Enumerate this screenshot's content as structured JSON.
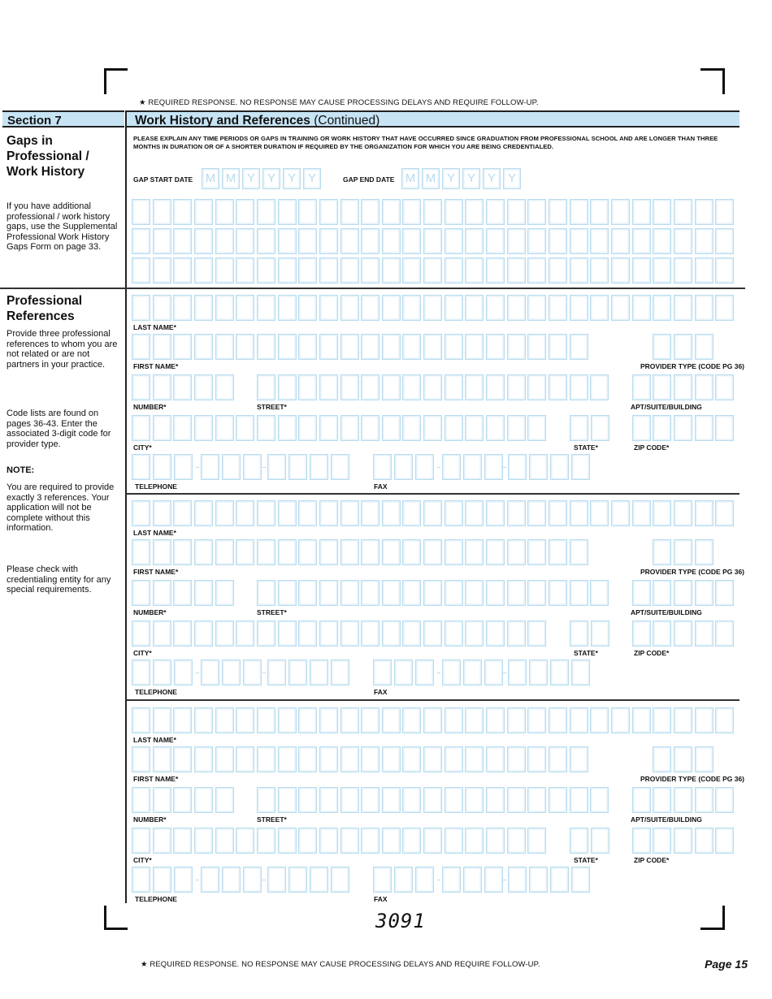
{
  "required_note": "★ REQUIRED RESPONSE. NO RESPONSE MAY CAUSE PROCESSING DELAYS AND REQUIRE FOLLOW-UP.",
  "header": {
    "section": "Section 7",
    "title": "Work History and References",
    "title_suffix": "(Continued)"
  },
  "colors": {
    "header_fill": "#c7e4f4",
    "box_border": "#b9dcef"
  },
  "gaps": {
    "heading": "Gaps in Professional / Work History",
    "note": "If you have additional professional / work history gaps, use the Supplemental Professional Work History Gaps Form on page 33.",
    "instructions": "PLEASE EXPLAIN ANY TIME PERIODS OR GAPS IN TRAINING OR WORK HISTORY THAT HAVE OCCURRED SINCE GRADUATION FROM PROFESSIONAL SCHOOL AND ARE LONGER THAN THREE MONTHS IN DURATION OR OF A SHORTER DURATION IF REQUIRED BY THE ORGANIZATION FOR WHICH YOU ARE BEING CREDENTIALED.",
    "start_label": "GAP START DATE",
    "end_label": "GAP END DATE",
    "date_placeholders": [
      "M",
      "M",
      "Y",
      "Y",
      "Y",
      "Y"
    ]
  },
  "references": {
    "heading": "Professional References",
    "intro": "Provide three professional references to whom you are not related or are not partners in your practice.",
    "codes_note": "Code lists are found on pages 36-43. Enter the associated 3-digit code for provider type.",
    "note_label": "NOTE:",
    "note_text": "You are required to provide exactly 3 references.  Your application will not be complete without this information.",
    "check_text": "Please check with credentialing entity for any special requirements.",
    "labels": {
      "last_name": "LAST NAME*",
      "first_name": "FIRST NAME*",
      "provider_type": "PROVIDER TYPE (CODE PG 36)",
      "number": "NUMBER*",
      "street": "STREET*",
      "apt": "APT/SUITE/BUILDING",
      "city": "CITY*",
      "state": "STATE*",
      "zip": "ZIP CODE*",
      "telephone": "TELEPHONE",
      "fax": "FAX"
    }
  },
  "form_code": "3091",
  "footer": {
    "note": "★ REQUIRED RESPONSE. NO RESPONSE MAY CAUSE PROCESSING DELAYS AND REQUIRE FOLLOW-UP.",
    "page": "Page 15"
  }
}
